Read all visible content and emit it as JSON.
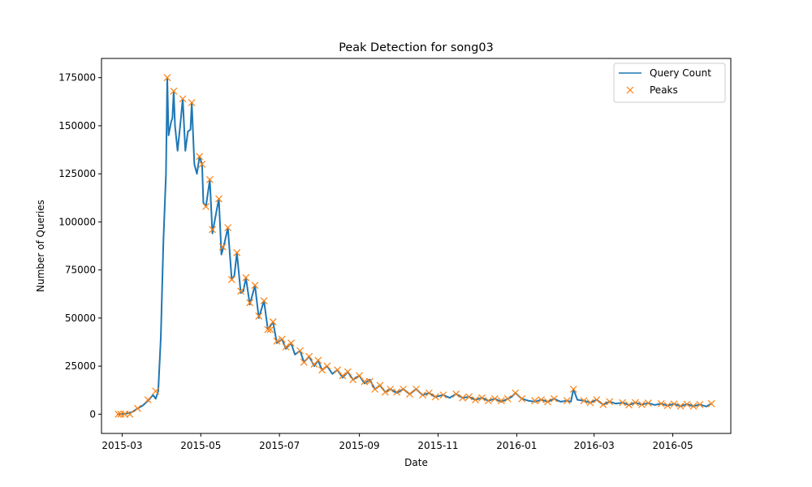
{
  "chart_data": {
    "type": "line",
    "title": "Peak Detection for song03",
    "xlabel": "Date",
    "ylabel": "Number of Queries",
    "x_ticks": [
      "2015-03",
      "2015-05",
      "2015-07",
      "2015-09",
      "2015-11",
      "2016-01",
      "2016-03",
      "2016-05"
    ],
    "y_ticks": [
      "0",
      "25000",
      "50000",
      "75000",
      "100000",
      "125000",
      "150000",
      "175000"
    ],
    "xlim": [
      "2015-02-13",
      "2016-06-15"
    ],
    "ylim": [
      -10000,
      185000
    ],
    "grid": false,
    "legend_position": "top-right",
    "colors": {
      "line": "#1f77b4",
      "peaks": "#ff7f0e"
    },
    "series": [
      {
        "name": "Query Count",
        "kind": "line",
        "points": [
          [
            "2015-02-25",
            0
          ],
          [
            "2015-03-01",
            200
          ],
          [
            "2015-03-05",
            400
          ],
          [
            "2015-03-09",
            1200
          ],
          [
            "2015-03-13",
            3000
          ],
          [
            "2015-03-17",
            4500
          ],
          [
            "2015-03-21",
            7000
          ],
          [
            "2015-03-25",
            10000
          ],
          [
            "2015-03-27",
            8000
          ],
          [
            "2015-03-29",
            12000
          ],
          [
            "2015-03-31",
            40000
          ],
          [
            "2015-04-02",
            90000
          ],
          [
            "2015-04-04",
            125000
          ],
          [
            "2015-04-05",
            175000
          ],
          [
            "2015-04-06",
            145000
          ],
          [
            "2015-04-08",
            152000
          ],
          [
            "2015-04-09",
            154000
          ],
          [
            "2015-04-10",
            168000
          ],
          [
            "2015-04-11",
            150000
          ],
          [
            "2015-04-13",
            137000
          ],
          [
            "2015-04-15",
            150000
          ],
          [
            "2015-04-17",
            164000
          ],
          [
            "2015-04-19",
            137000
          ],
          [
            "2015-04-21",
            147000
          ],
          [
            "2015-04-23",
            148000
          ],
          [
            "2015-04-24",
            162000
          ],
          [
            "2015-04-26",
            130000
          ],
          [
            "2015-04-28",
            125000
          ],
          [
            "2015-04-30",
            134000
          ],
          [
            "2015-05-02",
            130000
          ],
          [
            "2015-05-03",
            110000
          ],
          [
            "2015-05-05",
            108000
          ],
          [
            "2015-05-08",
            122000
          ],
          [
            "2015-05-10",
            94000
          ],
          [
            "2015-05-13",
            105000
          ],
          [
            "2015-05-15",
            112000
          ],
          [
            "2015-05-17",
            83000
          ],
          [
            "2015-05-19",
            88000
          ],
          [
            "2015-05-22",
            97000
          ],
          [
            "2015-05-25",
            70000
          ],
          [
            "2015-05-27",
            72000
          ],
          [
            "2015-05-29",
            84000
          ],
          [
            "2015-06-01",
            63000
          ],
          [
            "2015-06-03",
            64000
          ],
          [
            "2015-06-05",
            71000
          ],
          [
            "2015-06-08",
            57000
          ],
          [
            "2015-06-12",
            67000
          ],
          [
            "2015-06-15",
            50000
          ],
          [
            "2015-06-19",
            59000
          ],
          [
            "2015-06-22",
            44000
          ],
          [
            "2015-06-26",
            48000
          ],
          [
            "2015-06-29",
            37000
          ],
          [
            "2015-07-03",
            39000
          ],
          [
            "2015-07-06",
            34000
          ],
          [
            "2015-07-10",
            37000
          ],
          [
            "2015-07-13",
            31000
          ],
          [
            "2015-07-17",
            33000
          ],
          [
            "2015-07-20",
            27000
          ],
          [
            "2015-07-24",
            30000
          ],
          [
            "2015-07-28",
            25000
          ],
          [
            "2015-07-31",
            28000
          ],
          [
            "2015-08-03",
            23000
          ],
          [
            "2015-08-07",
            25000
          ],
          [
            "2015-08-11",
            21000
          ],
          [
            "2015-08-15",
            23000
          ],
          [
            "2015-08-19",
            19000
          ],
          [
            "2015-08-23",
            22000
          ],
          [
            "2015-08-27",
            18000
          ],
          [
            "2015-09-01",
            20000
          ],
          [
            "2015-09-05",
            16000
          ],
          [
            "2015-09-09",
            18000
          ],
          [
            "2015-09-13",
            13000
          ],
          [
            "2015-09-17",
            15000
          ],
          [
            "2015-09-21",
            11500
          ],
          [
            "2015-09-25",
            13000
          ],
          [
            "2015-09-30",
            11000
          ],
          [
            "2015-10-05",
            13000
          ],
          [
            "2015-10-10",
            10500
          ],
          [
            "2015-10-15",
            13000
          ],
          [
            "2015-10-20",
            10000
          ],
          [
            "2015-10-25",
            11000
          ],
          [
            "2015-10-30",
            9000
          ],
          [
            "2015-11-05",
            10000
          ],
          [
            "2015-11-10",
            8500
          ],
          [
            "2015-11-15",
            10500
          ],
          [
            "2015-11-20",
            8500
          ],
          [
            "2015-11-25",
            9000
          ],
          [
            "2015-11-30",
            7500
          ],
          [
            "2015-12-05",
            8500
          ],
          [
            "2015-12-10",
            7000
          ],
          [
            "2015-12-15",
            8000
          ],
          [
            "2015-12-20",
            6500
          ],
          [
            "2015-12-25",
            8000
          ],
          [
            "2015-12-28",
            9000
          ],
          [
            "2015-12-31",
            11000
          ],
          [
            "2016-01-05",
            8000
          ],
          [
            "2016-01-10",
            7000
          ],
          [
            "2016-01-15",
            6500
          ],
          [
            "2016-01-20",
            7500
          ],
          [
            "2016-01-25",
            6500
          ],
          [
            "2016-01-30",
            8000
          ],
          [
            "2016-02-04",
            6500
          ],
          [
            "2016-02-09",
            7000
          ],
          [
            "2016-02-12",
            6500
          ],
          [
            "2016-02-14",
            13000
          ],
          [
            "2016-02-17",
            7500
          ],
          [
            "2016-02-22",
            7000
          ],
          [
            "2016-02-27",
            6000
          ],
          [
            "2016-03-03",
            7500
          ],
          [
            "2016-03-08",
            5000
          ],
          [
            "2016-03-13",
            6500
          ],
          [
            "2016-03-18",
            5500
          ],
          [
            "2016-03-23",
            6000
          ],
          [
            "2016-03-28",
            4800
          ],
          [
            "2016-04-02",
            6000
          ],
          [
            "2016-04-07",
            5000
          ],
          [
            "2016-04-12",
            5800
          ],
          [
            "2016-04-17",
            4800
          ],
          [
            "2016-04-22",
            5500
          ],
          [
            "2016-04-27",
            4500
          ],
          [
            "2016-05-02",
            5300
          ],
          [
            "2016-05-07",
            4200
          ],
          [
            "2016-05-12",
            5200
          ],
          [
            "2016-05-17",
            4200
          ],
          [
            "2016-05-22",
            5000
          ],
          [
            "2016-05-27",
            4000
          ],
          [
            "2016-05-31",
            5500
          ]
        ]
      },
      {
        "name": "Peaks",
        "kind": "markers",
        "points": [
          [
            "2015-02-26",
            0
          ],
          [
            "2015-02-28",
            0
          ],
          [
            "2015-03-03",
            0
          ],
          [
            "2015-03-07",
            0
          ],
          [
            "2015-03-13",
            3000
          ],
          [
            "2015-03-21",
            7500
          ],
          [
            "2015-03-27",
            12000
          ],
          [
            "2015-04-05",
            175000
          ],
          [
            "2015-04-10",
            168000
          ],
          [
            "2015-04-17",
            164000
          ],
          [
            "2015-04-24",
            162000
          ],
          [
            "2015-04-30",
            134000
          ],
          [
            "2015-05-02",
            130000
          ],
          [
            "2015-05-05",
            108000
          ],
          [
            "2015-05-08",
            122000
          ],
          [
            "2015-05-10",
            96000
          ],
          [
            "2015-05-15",
            112000
          ],
          [
            "2015-05-18",
            87000
          ],
          [
            "2015-05-22",
            97000
          ],
          [
            "2015-05-25",
            70000
          ],
          [
            "2015-05-29",
            84000
          ],
          [
            "2015-06-01",
            64000
          ],
          [
            "2015-06-05",
            71000
          ],
          [
            "2015-06-08",
            58000
          ],
          [
            "2015-06-12",
            67000
          ],
          [
            "2015-06-15",
            51000
          ],
          [
            "2015-06-19",
            59000
          ],
          [
            "2015-06-22",
            44000
          ],
          [
            "2015-06-24",
            44000
          ],
          [
            "2015-06-26",
            48000
          ],
          [
            "2015-06-29",
            38000
          ],
          [
            "2015-07-03",
            39000
          ],
          [
            "2015-07-06",
            35000
          ],
          [
            "2015-07-10",
            37000
          ],
          [
            "2015-07-17",
            33000
          ],
          [
            "2015-07-20",
            27000
          ],
          [
            "2015-07-24",
            30000
          ],
          [
            "2015-07-28",
            26000
          ],
          [
            "2015-07-31",
            28000
          ],
          [
            "2015-08-03",
            23000
          ],
          [
            "2015-08-07",
            25000
          ],
          [
            "2015-08-15",
            23000
          ],
          [
            "2015-08-19",
            20000
          ],
          [
            "2015-08-23",
            22000
          ],
          [
            "2015-08-27",
            18000
          ],
          [
            "2015-09-01",
            20000
          ],
          [
            "2015-09-05",
            17000
          ],
          [
            "2015-09-09",
            17000
          ],
          [
            "2015-09-13",
            13000
          ],
          [
            "2015-09-17",
            15000
          ],
          [
            "2015-09-21",
            11500
          ],
          [
            "2015-09-25",
            13000
          ],
          [
            "2015-09-30",
            11500
          ],
          [
            "2015-10-05",
            13000
          ],
          [
            "2015-10-10",
            10500
          ],
          [
            "2015-10-15",
            13000
          ],
          [
            "2015-10-20",
            10000
          ],
          [
            "2015-10-25",
            11000
          ],
          [
            "2015-10-30",
            9000
          ],
          [
            "2015-11-05",
            10000
          ],
          [
            "2015-11-15",
            10500
          ],
          [
            "2015-11-20",
            8500
          ],
          [
            "2015-11-25",
            9000
          ],
          [
            "2015-11-30",
            7500
          ],
          [
            "2015-12-05",
            8500
          ],
          [
            "2015-12-10",
            7000
          ],
          [
            "2015-12-15",
            8000
          ],
          [
            "2015-12-20",
            7000
          ],
          [
            "2015-12-25",
            8000
          ],
          [
            "2015-12-31",
            11000
          ],
          [
            "2016-01-05",
            8000
          ],
          [
            "2016-01-15",
            7000
          ],
          [
            "2016-01-20",
            7500
          ],
          [
            "2016-01-25",
            6500
          ],
          [
            "2016-01-30",
            8000
          ],
          [
            "2016-02-09",
            7000
          ],
          [
            "2016-02-14",
            13000
          ],
          [
            "2016-02-22",
            7000
          ],
          [
            "2016-02-27",
            6000
          ],
          [
            "2016-03-03",
            7500
          ],
          [
            "2016-03-08",
            5000
          ],
          [
            "2016-03-13",
            6500
          ],
          [
            "2016-03-23",
            6000
          ],
          [
            "2016-03-28",
            4800
          ],
          [
            "2016-04-02",
            6000
          ],
          [
            "2016-04-07",
            5000
          ],
          [
            "2016-04-12",
            5800
          ],
          [
            "2016-04-22",
            5500
          ],
          [
            "2016-04-27",
            4500
          ],
          [
            "2016-05-02",
            5300
          ],
          [
            "2016-05-07",
            4200
          ],
          [
            "2016-05-12",
            5200
          ],
          [
            "2016-05-17",
            4200
          ],
          [
            "2016-05-22",
            5000
          ],
          [
            "2016-05-31",
            5500
          ]
        ]
      }
    ]
  }
}
